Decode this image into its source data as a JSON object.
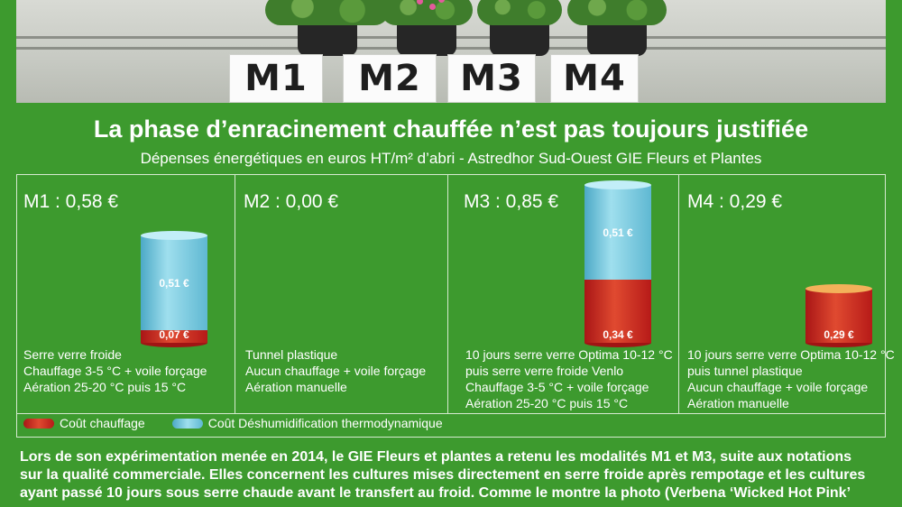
{
  "photo": {
    "tags": [
      "M1",
      "M2",
      "M3",
      "M4"
    ]
  },
  "chart_data": {
    "type": "bar",
    "title": "La phase d’enracinement chauffée n’est pas toujours justifiée",
    "subtitle": "Dépenses énergétiques en euros HT/m² d’abri - Astredhor Sud-Ouest GIE Fleurs et Plantes",
    "categories": [
      "M1",
      "M2",
      "M3",
      "M4"
    ],
    "category_labels": [
      "M1 : 0,58 €",
      "M2 : 0,00 €",
      "M3 : 0,85 €",
      "M4 : 0,29 €"
    ],
    "series": [
      {
        "name": "Coût chauffage",
        "values": [
          0.07,
          0.0,
          0.34,
          0.29
        ],
        "labels": [
          "0,07 €",
          "",
          "0,34 €",
          "0,29 €"
        ],
        "color": "#c9281e"
      },
      {
        "name": "Coût Déshumidification thermodynamique",
        "values": [
          0.51,
          0.0,
          0.51,
          0.0
        ],
        "labels": [
          "0,51 €",
          "",
          "0,51 €",
          ""
        ],
        "color": "#5fb8d2"
      }
    ],
    "stacked": true,
    "descriptions": [
      [
        "Serre verre froide",
        "Chauffage 3-5 °C + voile forçage",
        "Aération 25-20 °C puis 15 °C"
      ],
      [
        "Tunnel plastique",
        "Aucun chauffage + voile forçage",
        "Aération manuelle"
      ],
      [
        "10 jours serre verre Optima 10-12 °C",
        "puis serre verre froide Venlo",
        "Chauffage 3-5 °C + voile forçage",
        "Aération 25-20 °C puis 15 °C"
      ],
      [
        "10 jours serre verre Optima 10-12 °C",
        "puis tunnel plastique",
        "Aucun chauffage + voile forçage",
        "Aération manuelle"
      ]
    ]
  },
  "body_text": [
    "Lors de son expérimentation menée en 2014, le GIE Fleurs et plantes a retenu les modalités M1 et M3, suite aux notations",
    "sur la qualité commerciale. Elles concernent les cultures mises directement en serre froide après rempotage et les cultures",
    "ayant passé 10 jours sous serre chaude avant le transfert au froid. Comme le montre la photo (Verbena ‘Wicked Hot Pink’"
  ]
}
